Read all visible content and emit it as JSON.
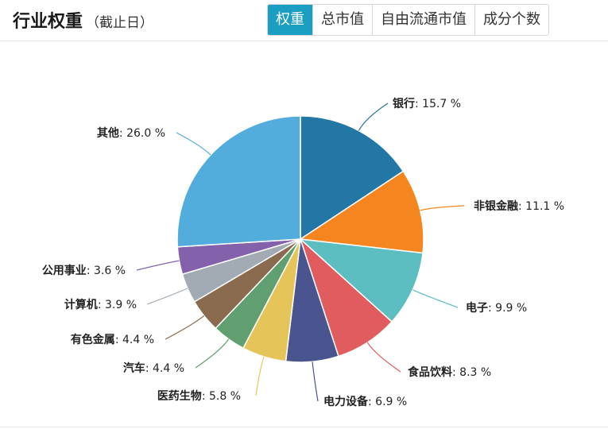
{
  "header": {
    "title": "行业权重",
    "subtitle": "（截止日）",
    "tabs": [
      {
        "label": "权重",
        "active": true
      },
      {
        "label": "总市值",
        "active": false
      },
      {
        "label": "自由流通市值",
        "active": false
      },
      {
        "label": "成分个数",
        "active": false
      }
    ]
  },
  "chart_data": {
    "type": "pie",
    "title": "",
    "unit": "%",
    "slices": [
      {
        "name": "银行",
        "value": 15.7,
        "color": "#2277a4"
      },
      {
        "name": "非银金融",
        "value": 11.1,
        "color": "#f5861f"
      },
      {
        "name": "电子",
        "value": 9.9,
        "color": "#5cbec1"
      },
      {
        "name": "食品饮料",
        "value": 8.3,
        "color": "#e05c5f"
      },
      {
        "name": "电力设备",
        "value": 6.9,
        "color": "#4a5590"
      },
      {
        "name": "医药生物",
        "value": 5.8,
        "color": "#e5c55a"
      },
      {
        "name": "汽车",
        "value": 4.4,
        "color": "#5f9f70"
      },
      {
        "name": "有色金属",
        "value": 4.4,
        "color": "#8a6b50"
      },
      {
        "name": "计算机",
        "value": 3.9,
        "color": "#a2abb4"
      },
      {
        "name": "公用事业",
        "value": 3.6,
        "color": "#8361ab"
      },
      {
        "name": "其他",
        "value": 26.0,
        "color": "#52acdc"
      }
    ]
  }
}
